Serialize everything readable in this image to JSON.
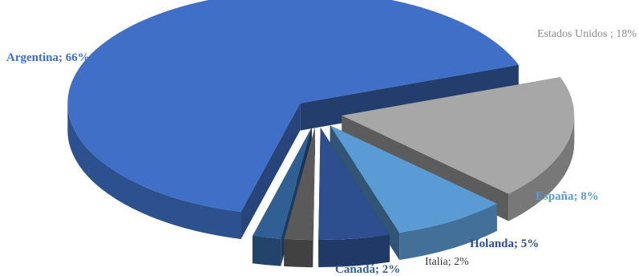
{
  "chart_data": {
    "type": "pie",
    "title": "",
    "categories": [
      "Argentina",
      "Estados Unidos",
      "España",
      "Holanda",
      "Italia",
      "Canadá"
    ],
    "values": [
      66,
      18,
      8,
      5,
      2,
      2
    ],
    "labels": [
      "Argentina; 66%",
      "Estados Unidos ; 18%",
      "España; 8%",
      "Holanda; 5%",
      "Italia; 2%",
      "Canadá; 2%"
    ],
    "colors": [
      "#3f6fc6",
      "#a7a7a7",
      "#5b9bd5",
      "#2e4f8f",
      "#5a5a5a",
      "#2f5f95"
    ],
    "label_colors": [
      "#3f6fc6",
      "#8c8c8c",
      "#5b9bd5",
      "#2e4f8f",
      "#3a3a3a",
      "#2f5f95"
    ],
    "style": "3d-exploded"
  }
}
